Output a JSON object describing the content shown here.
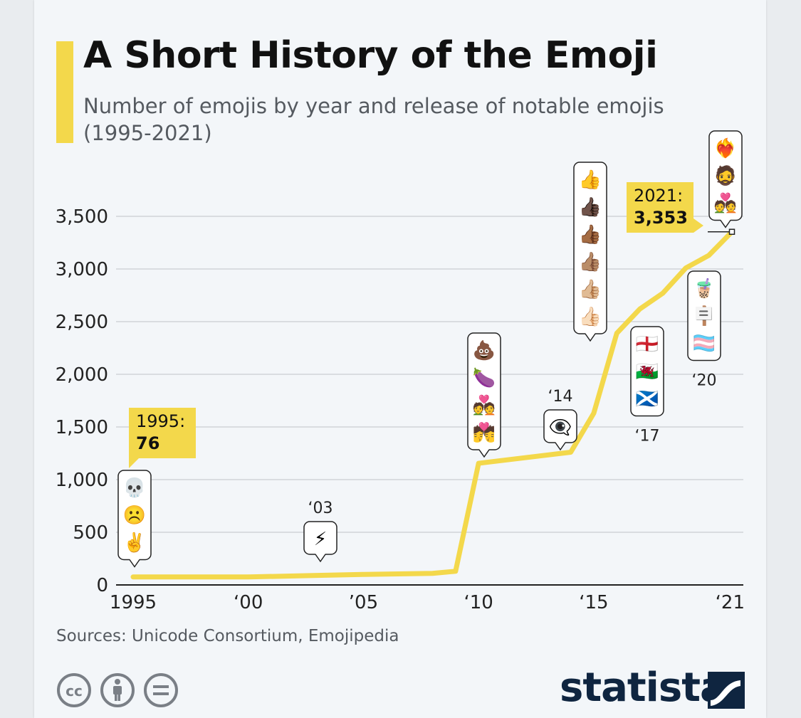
{
  "title": "A Short History of the Emoji",
  "subtitle": "Number of emojis by year and release of notable emojis (1995-2021)",
  "source": "Sources: Unicode Consortium, Emojipedia",
  "brand": "statista",
  "license_icons": [
    "cc-icon",
    "attribution-icon",
    "no-derivatives-icon"
  ],
  "colors": {
    "line": "#f3d84b",
    "label_box": "#f3d84b",
    "grid": "#c9ccd1",
    "text": "#111111",
    "muted": "#555a60",
    "brand": "#0f2540",
    "background": "#f3f6f9"
  },
  "chart_data": {
    "type": "line",
    "title": "A Short History of the Emoji",
    "subtitle": "Number of emojis by year and release of notable emojis (1995-2021)",
    "xlabel": "",
    "ylabel": "",
    "xlim": [
      1995,
      2021
    ],
    "ylim": [
      0,
      3500
    ],
    "grid": true,
    "yticks": [
      0,
      500,
      1000,
      1500,
      2000,
      2500,
      3000,
      3500
    ],
    "ytick_labels": [
      "0",
      "500",
      "1,000",
      "1,500",
      "2,000",
      "2,500",
      "3,000",
      "3,500"
    ],
    "xticks": [
      1995,
      2000,
      2005,
      2010,
      2015,
      2021
    ],
    "xtick_labels": [
      "1995",
      "‘00",
      "’05",
      "‘10",
      "‘15",
      "‘21"
    ],
    "series": [
      {
        "x": [
          1995,
          2000,
          2003,
          2005,
          2008,
          2009,
          2010,
          2014,
          2015,
          2016,
          2017,
          2018,
          2019,
          2020,
          2021
        ],
        "values": [
          76,
          76,
          90,
          100,
          110,
          130,
          1155,
          1260,
          1630,
          2390,
          2620,
          2770,
          3010,
          3130,
          3353
        ]
      }
    ],
    "value_labels": [
      {
        "year": "1995:",
        "value": "76",
        "x": 1995,
        "y": 76
      },
      {
        "year": "2021:",
        "value": "3,353",
        "x": 2021,
        "y": 3353
      }
    ],
    "annotations": [
      {
        "label": "",
        "emojis": [
          "💀",
          "☹️",
          "✌️"
        ],
        "x": 1995
      },
      {
        "label": "‘03",
        "emojis": [
          "⚡"
        ],
        "x": 2003
      },
      {
        "label": "",
        "emojis": [
          "💩",
          "🍆",
          "💑",
          "💏"
        ],
        "x": 2010
      },
      {
        "label": "‘14",
        "emojis": [
          "👁️‍🗨️"
        ],
        "x": 2014
      },
      {
        "label": "",
        "emojis": [
          "👍",
          "👍🏿",
          "👍🏾",
          "👍🏽",
          "👍🏼",
          "👍🏻"
        ],
        "x": 2015
      },
      {
        "label": "‘17",
        "emojis": [
          "🏴󠁧󠁢󠁥󠁮󠁧󠁿",
          "🏴󠁧󠁢󠁷󠁬󠁳󠁿",
          "🏴󠁧󠁢󠁳󠁣󠁴󠁿"
        ],
        "x": 2017
      },
      {
        "label": "‘20",
        "emojis": [
          "🧋",
          "🪧",
          "🏳️‍⚧️"
        ],
        "x": 2020
      },
      {
        "label": "",
        "emojis": [
          "❤️‍🔥",
          "🧔",
          "💑"
        ],
        "x": 2021
      }
    ]
  }
}
